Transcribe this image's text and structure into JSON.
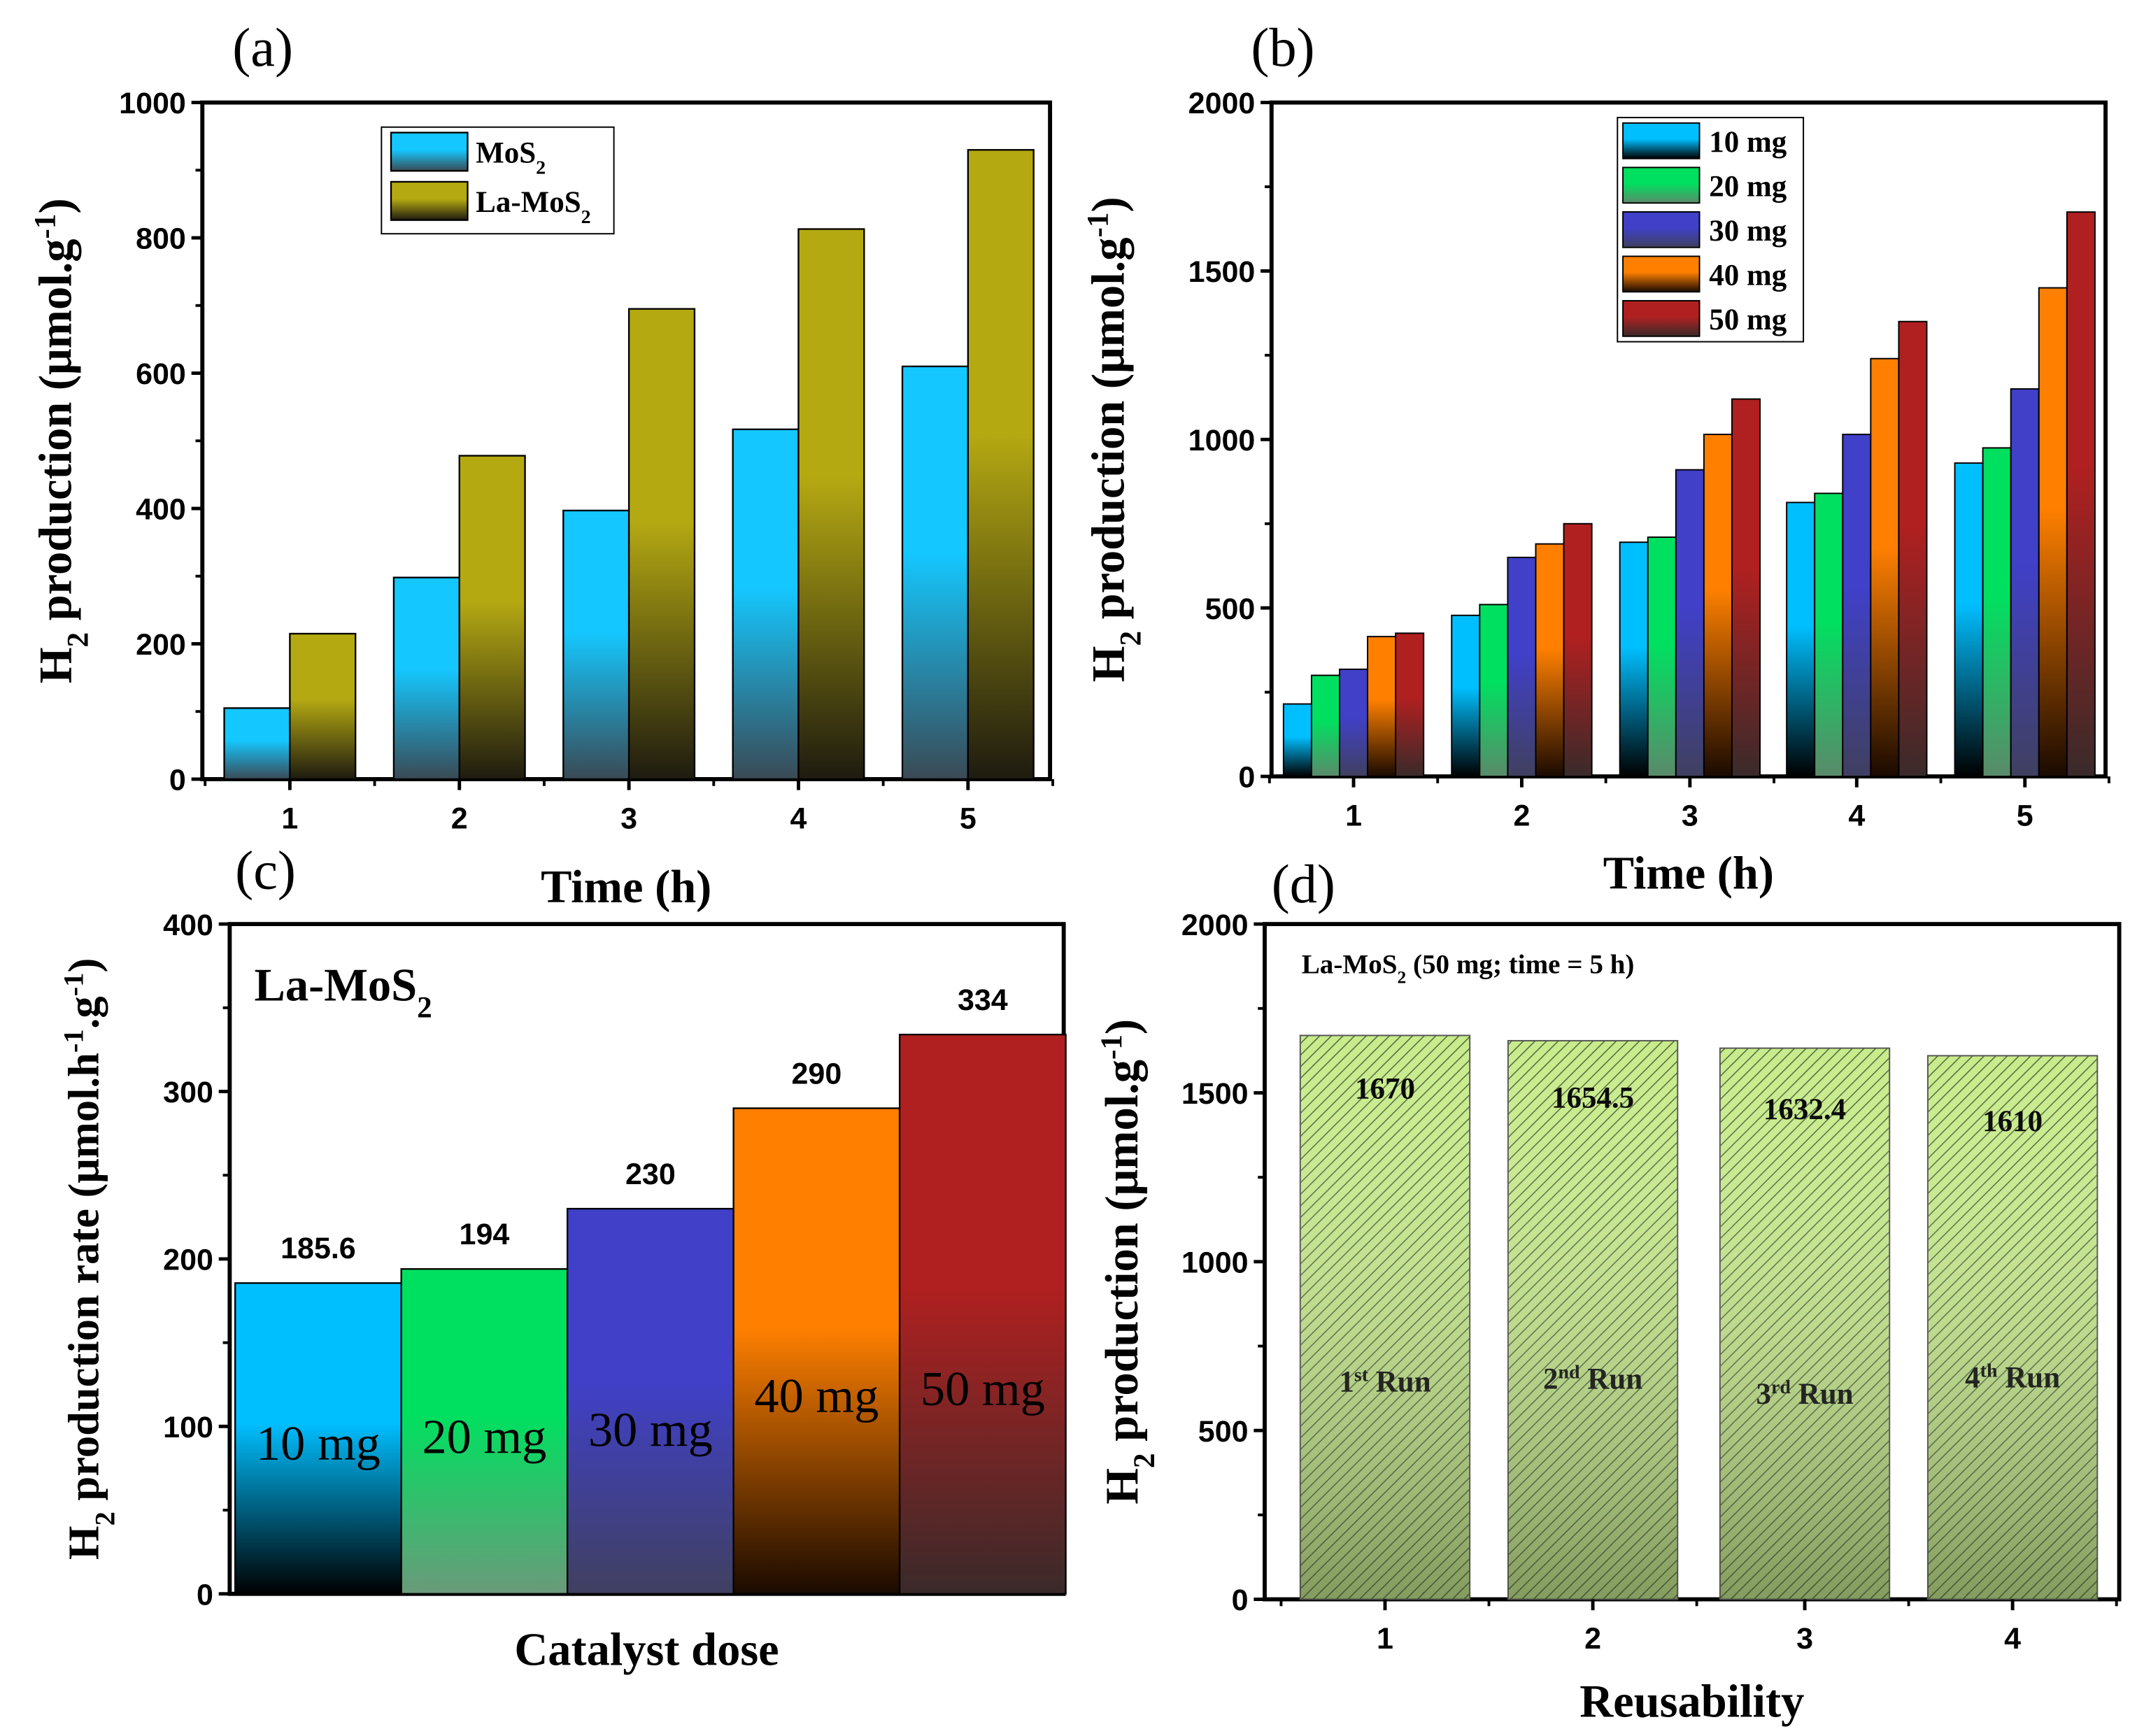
{
  "chart_data": [
    {
      "panel": "(a)",
      "type": "bar",
      "xlabel": [
        {
          "t": "Time (h)"
        }
      ],
      "ylabel": [
        {
          "t": "H"
        },
        {
          "t": "2",
          "s": "sub"
        },
        {
          "t": " production (μmol.g"
        },
        {
          "t": "-1",
          "s": "sup"
        },
        {
          "t": ")"
        }
      ],
      "categories": [
        "1",
        "2",
        "3",
        "4",
        "5"
      ],
      "ylim": [
        0,
        1000
      ],
      "yticks": [
        0,
        200,
        400,
        600,
        800,
        1000
      ],
      "legend": "top-center",
      "series": [
        {
          "name": [
            {
              "t": "MoS"
            },
            {
              "t": "2",
              "s": "sub"
            }
          ],
          "color": "#14c8ff",
          "dark": "#3a4a55",
          "values": [
            105,
            298,
            397,
            517,
            610
          ]
        },
        {
          "name": [
            {
              "t": "La-MoS"
            },
            {
              "t": "2",
              "s": "sub"
            }
          ],
          "color": "#b5a912",
          "dark": "#1e1b10",
          "values": [
            215,
            478,
            695,
            813,
            930
          ]
        }
      ]
    },
    {
      "panel": "(b)",
      "type": "bar",
      "xlabel": [
        {
          "t": "Time (h)"
        }
      ],
      "ylabel": [
        {
          "t": "H"
        },
        {
          "t": "2",
          "s": "sub"
        },
        {
          "t": " production (μmol.g"
        },
        {
          "t": "-1",
          "s": "sup"
        },
        {
          "t": ")"
        }
      ],
      "categories": [
        "1",
        "2",
        "3",
        "4",
        "5"
      ],
      "ylim": [
        0,
        2000
      ],
      "yticks": [
        0,
        500,
        1000,
        1500,
        2000
      ],
      "legend": "top-center",
      "series": [
        {
          "name": [
            {
              "t": "10 mg"
            }
          ],
          "color": "#00bfff",
          "dark": "#000000",
          "label_color": "#1a9ad6",
          "values": [
            215,
            478,
            695,
            813,
            930
          ]
        },
        {
          "name": [
            {
              "t": "20 mg"
            }
          ],
          "color": "#00e060",
          "dark": "#5a8a6a",
          "label_color": "#7ee032",
          "values": [
            300,
            510,
            710,
            840,
            975
          ]
        },
        {
          "name": [
            {
              "t": "30 mg"
            }
          ],
          "color": "#4040c8",
          "dark": "#404060",
          "label_color": "#1a1aa8",
          "values": [
            318,
            650,
            910,
            1015,
            1150
          ]
        },
        {
          "name": [
            {
              "t": "40 mg"
            }
          ],
          "color": "#ff8000",
          "dark": "#1a0a00",
          "label_color": "#ff8000",
          "values": [
            415,
            690,
            1015,
            1240,
            1450
          ]
        },
        {
          "name": [
            {
              "t": "50 mg"
            }
          ],
          "color": "#b02020",
          "dark": "#3a2a2a",
          "label_color": "#a01010",
          "values": [
            425,
            750,
            1120,
            1350,
            1675
          ]
        }
      ]
    },
    {
      "panel": "(c)",
      "type": "bar",
      "title": [
        {
          "t": "La-MoS"
        },
        {
          "t": "2",
          "s": "sub"
        }
      ],
      "xlabel": [
        {
          "t": "Catalyst dose"
        }
      ],
      "ylabel": [
        {
          "t": "H"
        },
        {
          "t": "2",
          "s": "sub"
        },
        {
          "t": " production rate (μmol.h"
        },
        {
          "t": "-1",
          "s": "sup"
        },
        {
          "t": ".g"
        },
        {
          "t": "-1",
          "s": "sup"
        },
        {
          "t": ")"
        }
      ],
      "categories": [
        "10 mg",
        "20 mg",
        "30 mg",
        "40 mg",
        "50 mg"
      ],
      "ylim": [
        0,
        400
      ],
      "yticks": [
        0,
        100,
        200,
        300,
        400
      ],
      "values": [
        185.6,
        194,
        230,
        290,
        334
      ],
      "data_labels": [
        "185.6",
        "194",
        "230",
        "290",
        "334"
      ],
      "colors": [
        "#00bfff",
        "#00e060",
        "#4040c8",
        "#ff8000",
        "#b02020"
      ],
      "darks": [
        "#000000",
        "#6a9a7a",
        "#404060",
        "#1a0a00",
        "#3a2a2a"
      ]
    },
    {
      "panel": "(d)",
      "type": "bar",
      "title": [
        {
          "t": "La-MoS"
        },
        {
          "t": "2",
          "s": "sub"
        },
        {
          "t": " (50 mg; time = 5 h)"
        }
      ],
      "xlabel": [
        {
          "t": "Reusability"
        }
      ],
      "ylabel": [
        {
          "t": "H"
        },
        {
          "t": "2",
          "s": "sub"
        },
        {
          "t": " production (μmol.g"
        },
        {
          "t": "-1",
          "s": "sup"
        },
        {
          "t": ")"
        }
      ],
      "categories": [
        "1",
        "2",
        "3",
        "4"
      ],
      "ylim": [
        0,
        2000
      ],
      "yticks": [
        0,
        500,
        1000,
        1500,
        2000
      ],
      "values": [
        1670,
        1654.5,
        1632.4,
        1610
      ],
      "data_labels": [
        "1670",
        "1654.5",
        "1632.4",
        "1610"
      ],
      "run_labels": [
        [
          {
            "t": "1"
          },
          {
            "t": "st",
            "s": "sup"
          },
          {
            "t": " Run"
          }
        ],
        [
          {
            "t": "2"
          },
          {
            "t": "nd",
            "s": "sup"
          },
          {
            "t": " Run"
          }
        ],
        [
          {
            "t": "3"
          },
          {
            "t": "rd",
            "s": "sup"
          },
          {
            "t": " Run"
          }
        ],
        [
          {
            "t": "4"
          },
          {
            "t": "th",
            "s": "sup"
          },
          {
            "t": " Run"
          }
        ]
      ],
      "color": "#c8ec8c"
    }
  ]
}
